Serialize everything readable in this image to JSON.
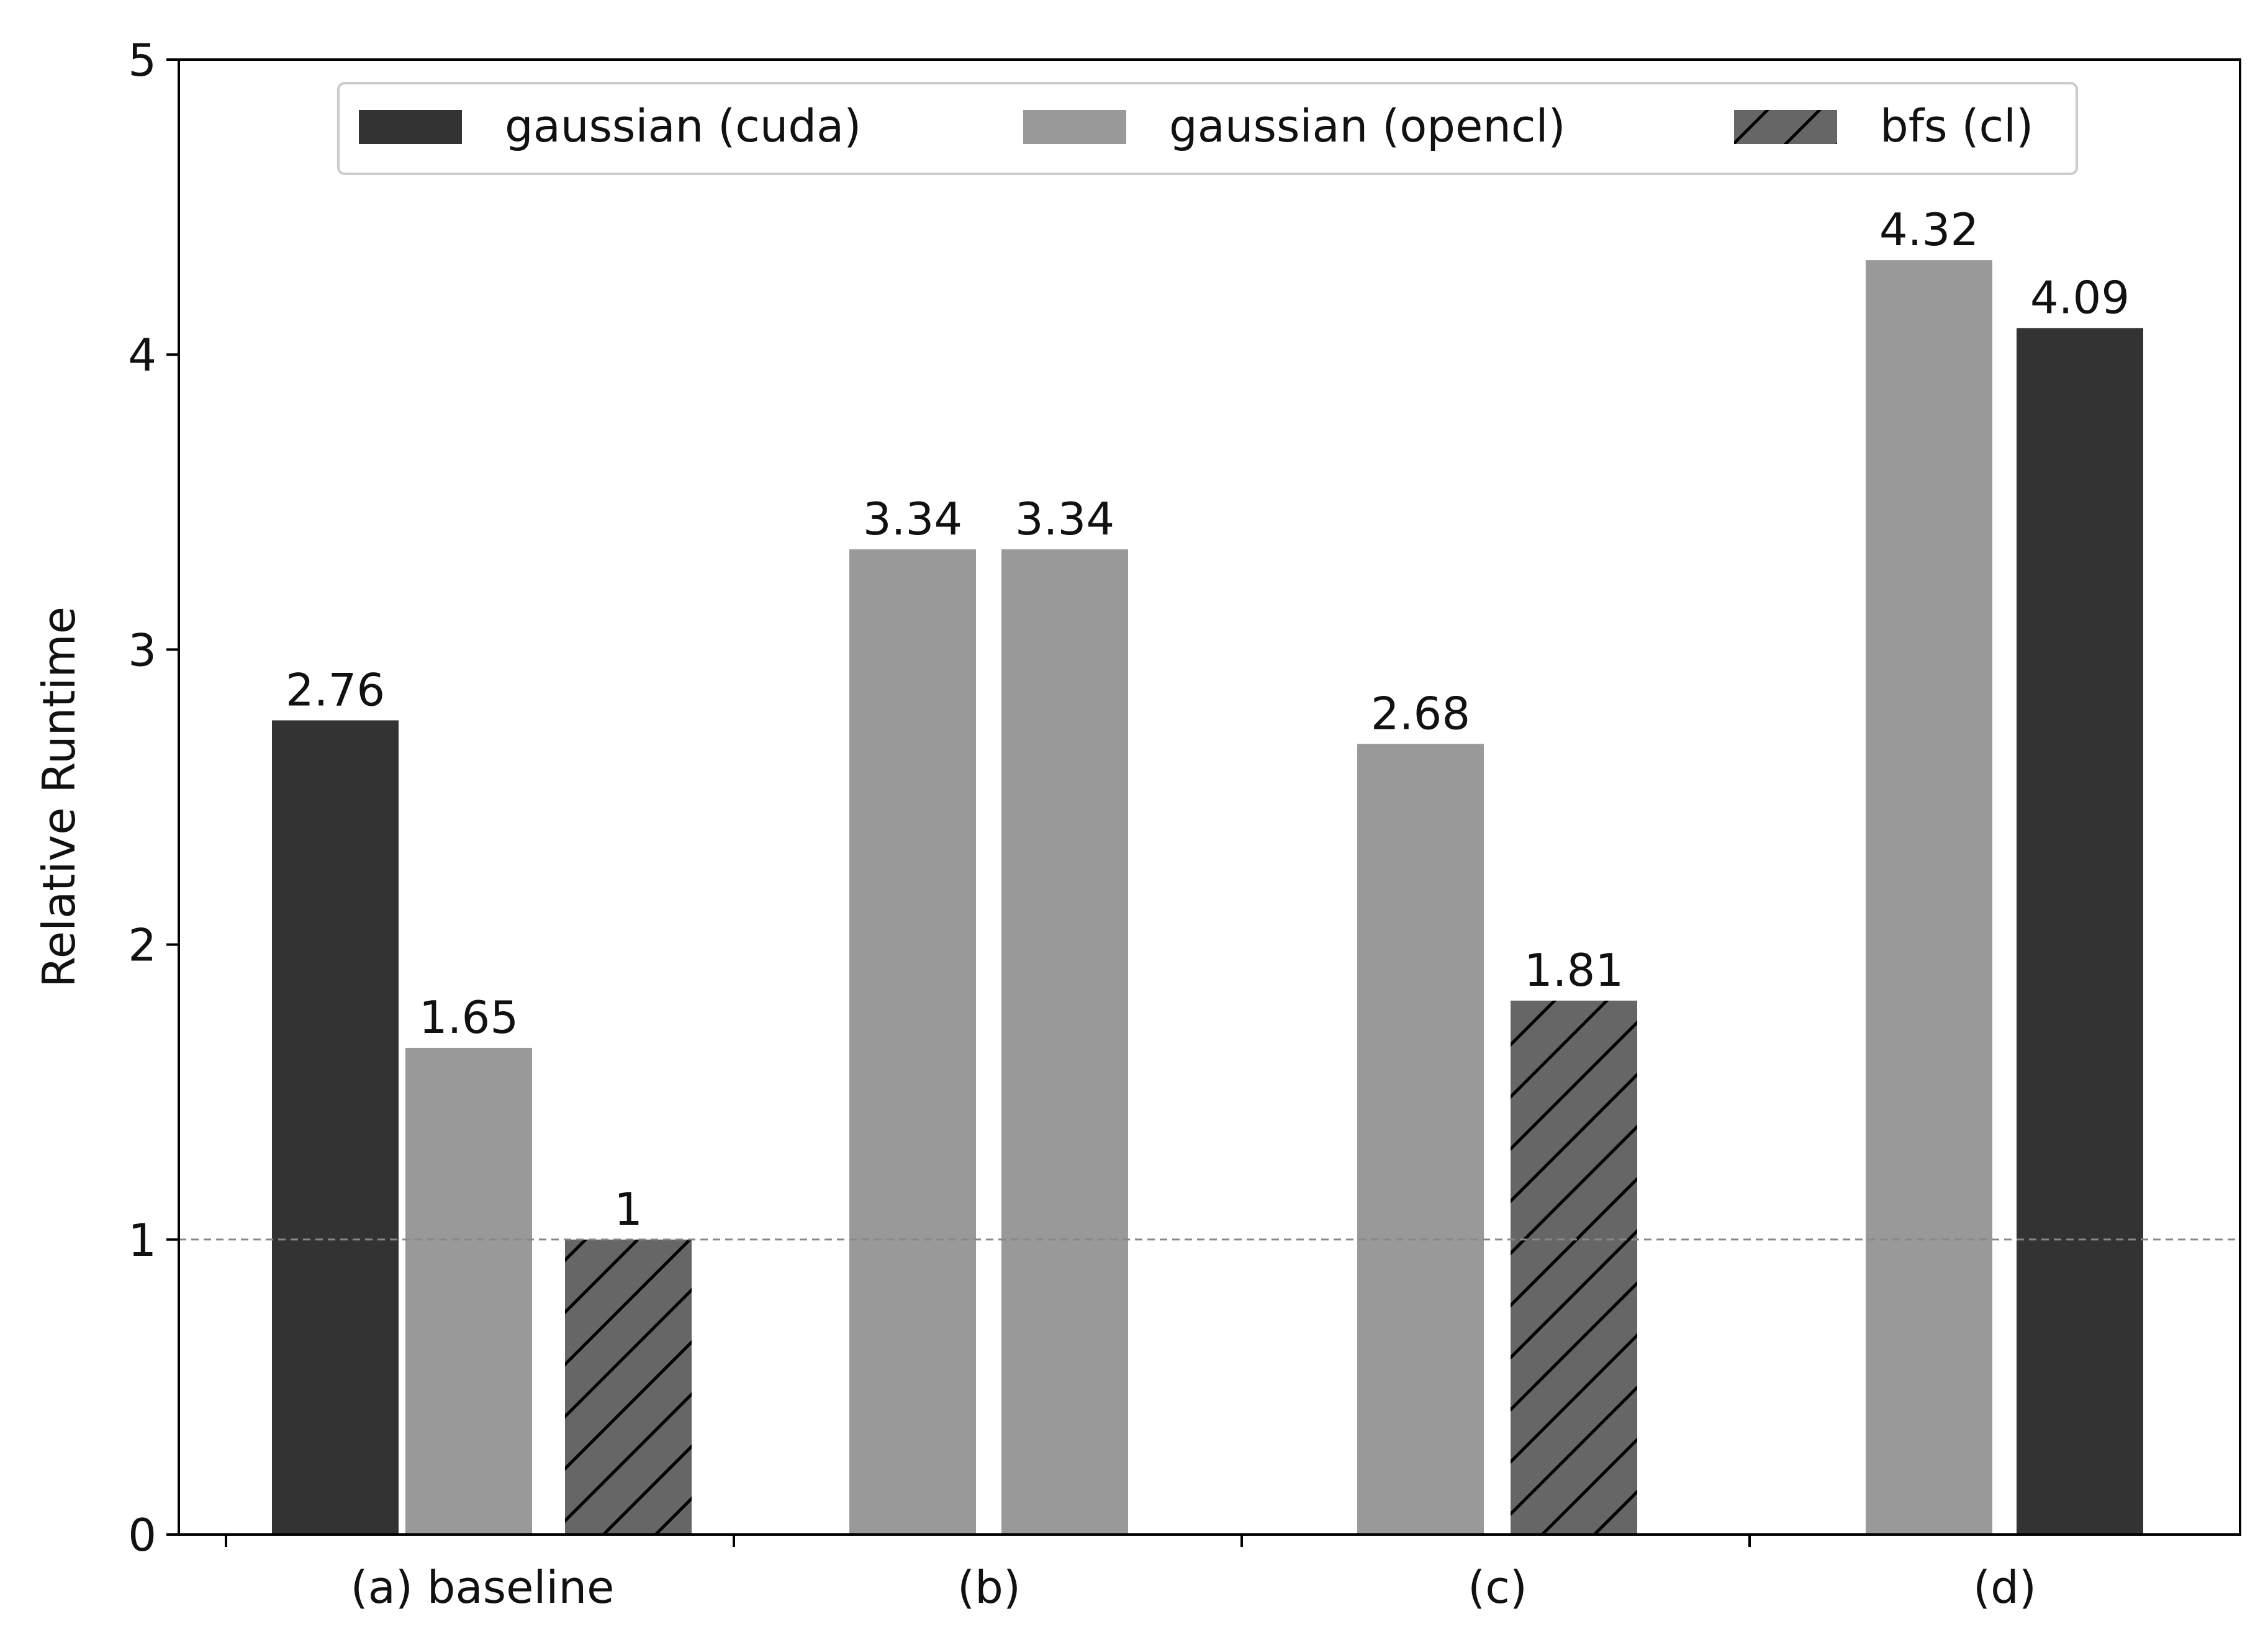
{
  "chart_data": {
    "type": "bar",
    "title": "",
    "xlabel": "",
    "ylabel": "Relative Runtime",
    "ylim": [
      0,
      5
    ],
    "yticks": [
      "0",
      "1",
      "2",
      "3",
      "4",
      "5"
    ],
    "categories": [
      "(a) baseline",
      "(b)",
      "(c)",
      "(d)"
    ],
    "series": [
      {
        "name": "gaussian (cuda)",
        "color": "#333333",
        "hatch": false
      },
      {
        "name": "gaussian (opencl)",
        "color": "#999999",
        "hatch": false
      },
      {
        "name": "bfs (cl)",
        "color": "#666666",
        "hatch": true
      }
    ],
    "bars": [
      {
        "category": "(a) baseline",
        "series": "gaussian (cuda)",
        "value": 2.76,
        "label": "2.76"
      },
      {
        "category": "(a) baseline",
        "series": "gaussian (opencl)",
        "value": 1.65,
        "label": "1.65"
      },
      {
        "category": "(a) baseline",
        "series": "bfs (cl)",
        "value": 1,
        "label": "1"
      },
      {
        "category": "(b)",
        "series": "gaussian (opencl)",
        "value": 3.34,
        "label": "3.34"
      },
      {
        "category": "(b)",
        "series": "gaussian (opencl)",
        "value": 3.34,
        "label": "3.34"
      },
      {
        "category": "(c)",
        "series": "gaussian (opencl)",
        "value": 2.68,
        "label": "2.68"
      },
      {
        "category": "(c)",
        "series": "bfs (cl)",
        "value": 1.81,
        "label": "1.81"
      },
      {
        "category": "(d)",
        "series": "gaussian (opencl)",
        "value": 4.32,
        "label": "4.32"
      },
      {
        "category": "(d)",
        "series": "gaussian (cuda)",
        "value": 4.09,
        "label": "4.09"
      }
    ],
    "reference_line": {
      "y": 1,
      "style": "dashed",
      "color": "#888888"
    },
    "legend": {
      "placement": "top-center",
      "columns": 3
    },
    "grid": false
  }
}
